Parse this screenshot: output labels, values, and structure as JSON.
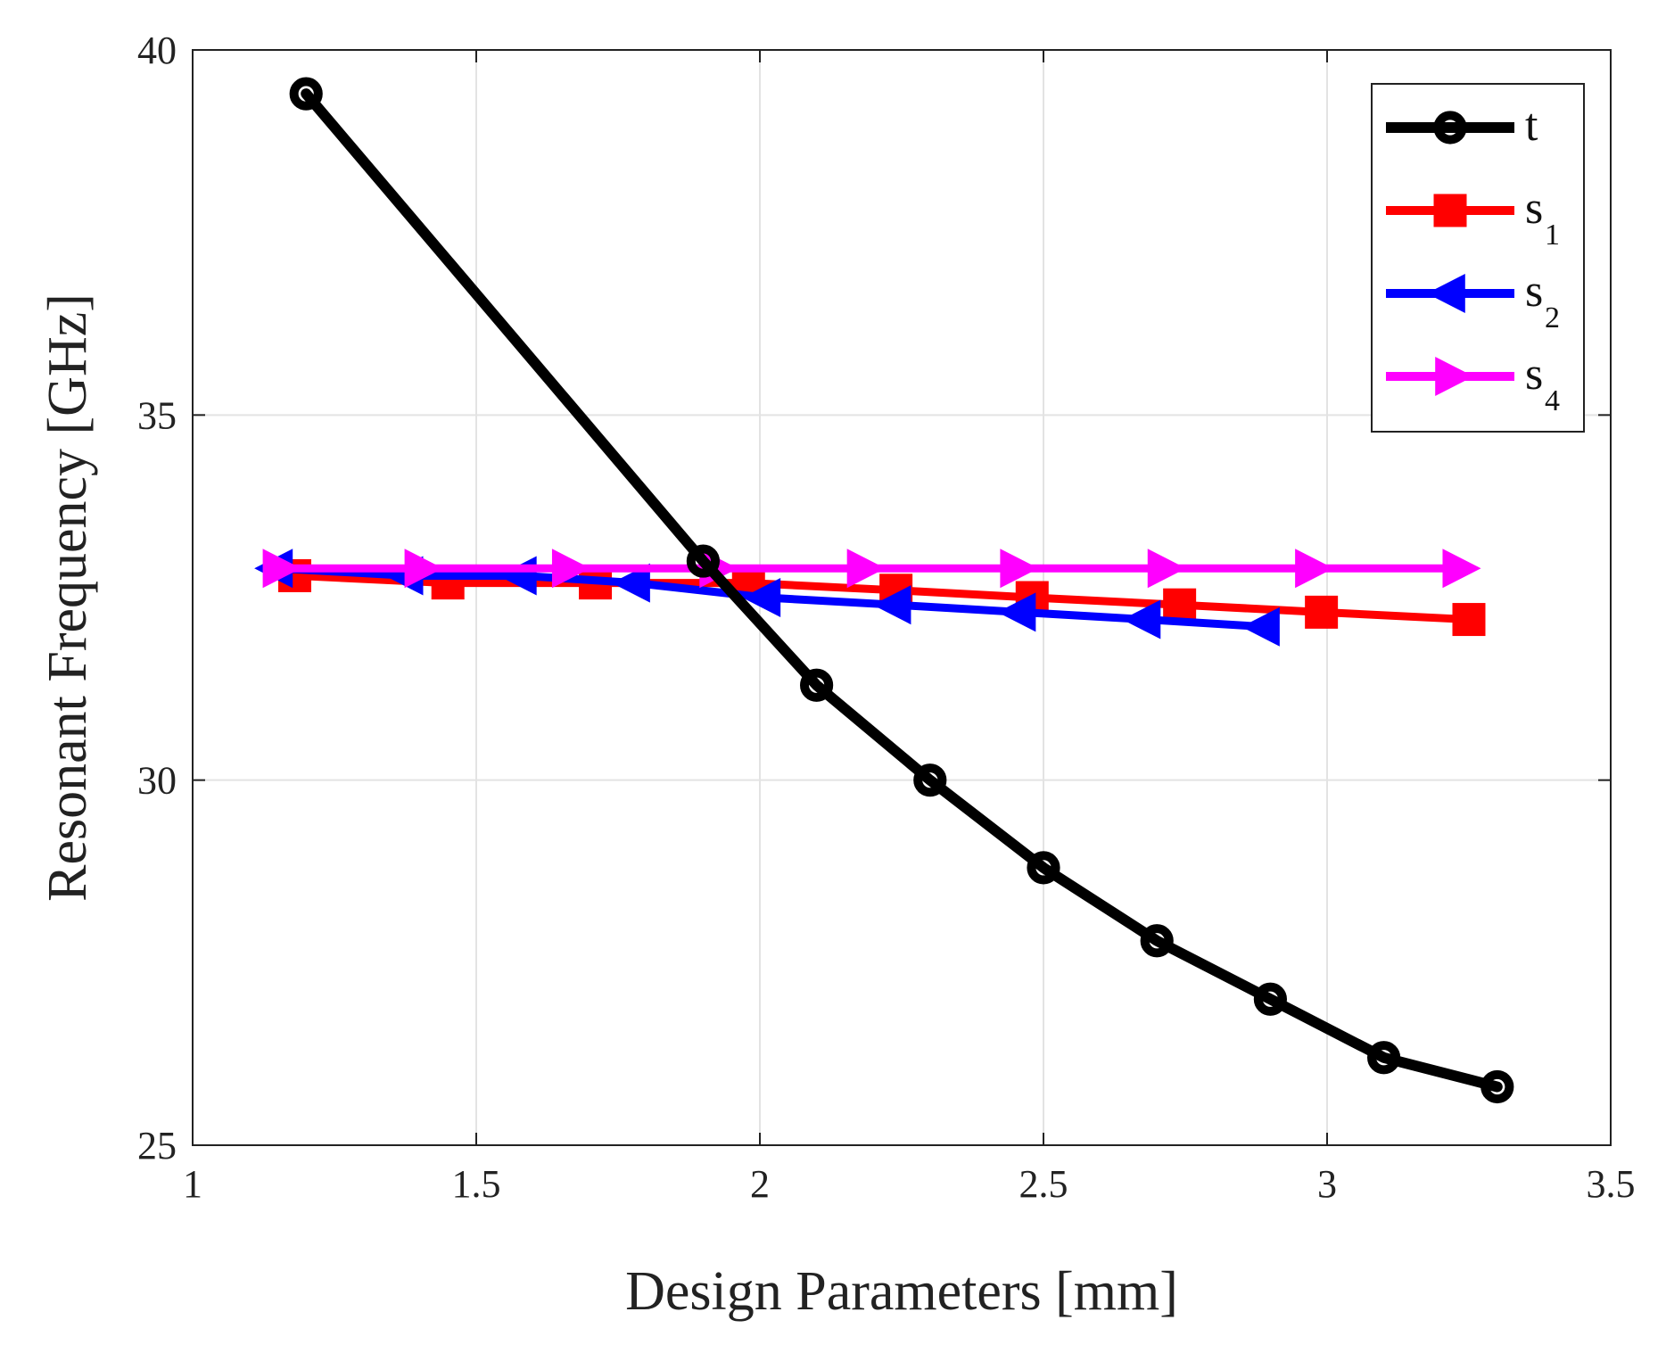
{
  "chart_data": {
    "type": "line",
    "title": "",
    "xlabel": "Design Parameters [mm]",
    "ylabel": "Resonant Frequency [GHz]",
    "xlim": [
      1,
      3.5
    ],
    "ylim": [
      25,
      40
    ],
    "xticks": [
      1,
      1.5,
      2,
      2.5,
      3,
      3.5
    ],
    "xtick_labels": [
      "1",
      "1.5",
      "2",
      "2.5",
      "3",
      "3.5"
    ],
    "yticks": [
      25,
      30,
      35,
      40
    ],
    "ytick_labels": [
      "25",
      "30",
      "35",
      "40"
    ],
    "grid": true,
    "legend_position": "top-right",
    "series": [
      {
        "name": "t",
        "legend_base": "t",
        "legend_sub": "",
        "color": "#000000",
        "marker": "circle",
        "x": [
          1.2,
          1.9,
          2.1,
          2.3,
          2.5,
          2.7,
          2.9,
          3.1,
          3.3
        ],
        "y": [
          39.4,
          33.0,
          31.3,
          30.0,
          28.8,
          27.8,
          27.0,
          26.2,
          25.8
        ]
      },
      {
        "name": "s1",
        "legend_base": "s",
        "legend_sub": "1",
        "color": "#ff0000",
        "marker": "square",
        "x": [
          1.18,
          1.45,
          1.71,
          1.98,
          2.24,
          2.48,
          2.74,
          2.99,
          3.25
        ],
        "y": [
          32.8,
          32.7,
          32.7,
          32.7,
          32.6,
          32.5,
          32.4,
          32.3,
          32.2
        ]
      },
      {
        "name": "s2",
        "legend_base": "s",
        "legend_sub": "2",
        "color": "#0000ff",
        "marker": "triangle-left",
        "x": [
          1.15,
          1.38,
          1.58,
          1.78,
          2.01,
          2.24,
          2.46,
          2.68,
          2.89
        ],
        "y": [
          32.9,
          32.8,
          32.8,
          32.7,
          32.5,
          32.4,
          32.3,
          32.2,
          32.1
        ]
      },
      {
        "name": "s4",
        "legend_base": "s",
        "legend_sub": "4",
        "color": "#ff00ff",
        "marker": "triangle-right",
        "x": [
          1.15,
          1.4,
          1.66,
          1.92,
          2.18,
          2.45,
          2.71,
          2.97,
          3.23
        ],
        "y": [
          32.9,
          32.9,
          32.9,
          32.9,
          32.9,
          32.9,
          32.9,
          32.9,
          32.9
        ]
      }
    ]
  }
}
